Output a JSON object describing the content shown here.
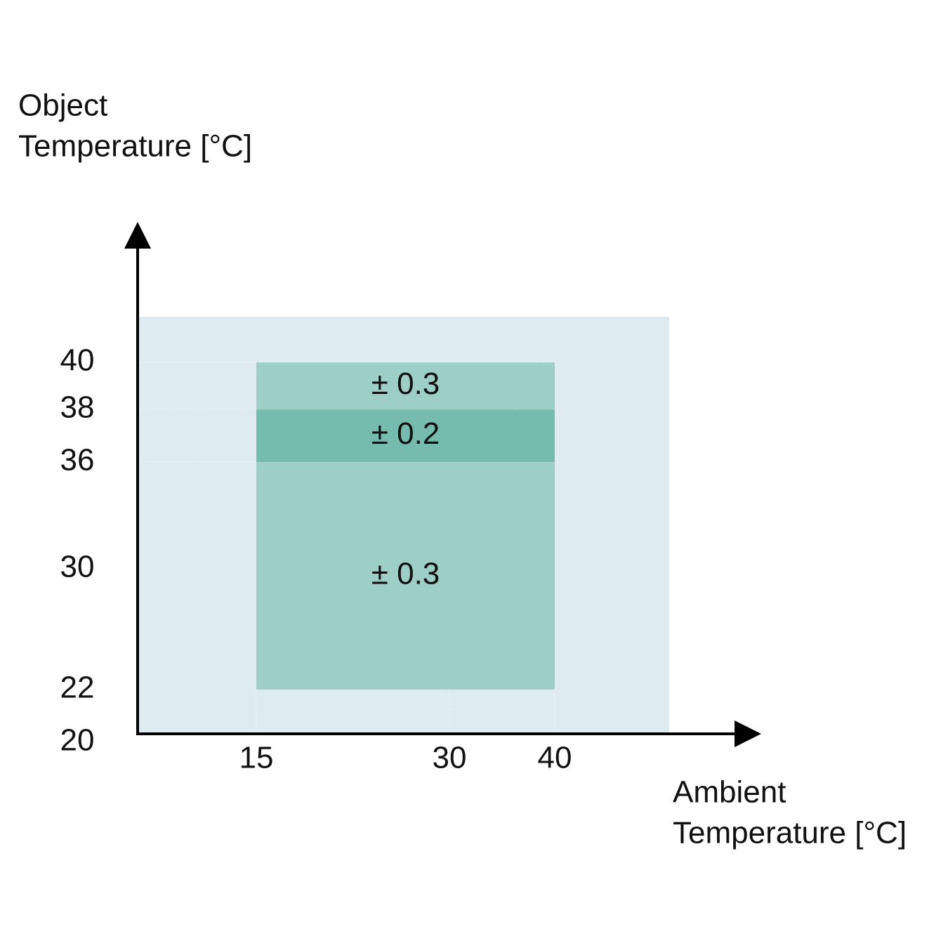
{
  "chart_data": {
    "type": "regions",
    "y_label": [
      "Object",
      "Temperature [°C]"
    ],
    "x_label": [
      "Ambient",
      "Temperature [°C]"
    ],
    "xticks": [
      15,
      30,
      40
    ],
    "yticks": [
      20,
      22,
      30,
      36,
      38,
      40
    ],
    "regions": [
      {
        "label": "± 0.3",
        "x": [
          15,
          40
        ],
        "y": [
          22,
          36
        ],
        "color": "#9dcfc6"
      },
      {
        "label": "± 0.2",
        "x": [
          15,
          40
        ],
        "y": [
          36,
          38
        ],
        "color": "#75bcaf"
      },
      {
        "label": "± 0.3",
        "x": [
          15,
          40
        ],
        "y": [
          38,
          40
        ],
        "color": "#9dcfc6"
      }
    ]
  }
}
